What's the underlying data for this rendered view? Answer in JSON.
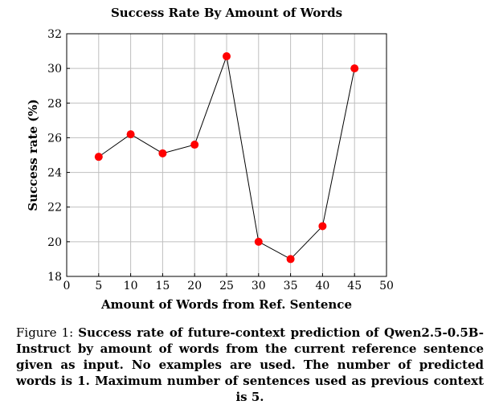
{
  "chart_data": {
    "type": "line",
    "title": "Success Rate By Amount of Words",
    "xlabel": "Amount of Words from Ref. Sentence",
    "ylabel": "Success rate (%)",
    "x": [
      5,
      10,
      15,
      20,
      25,
      30,
      35,
      40,
      45
    ],
    "y": [
      24.9,
      26.2,
      25.1,
      25.6,
      30.7,
      20.0,
      19.0,
      20.9,
      30.0
    ],
    "xlim": [
      0,
      50
    ],
    "ylim": [
      18,
      32
    ],
    "xticks": [
      "0",
      "5",
      "10",
      "15",
      "20",
      "25",
      "30",
      "35",
      "40",
      "45",
      "50"
    ],
    "yticks": [
      "18",
      "20",
      "22",
      "24",
      "26",
      "28",
      "30",
      "32"
    ],
    "grid": true,
    "line_color": "#000000",
    "marker_color": "#ff0000",
    "grid_color": "#bfbfbf"
  },
  "caption": {
    "label": "Figure 1:",
    "text": "Success rate of future-context prediction of Qwen2.5-0.5B-Instruct by amount of words from the current reference sentence given as input. No examples are used. The number of predicted words is 1. Maximum number of sentences used as previous context is 5."
  }
}
